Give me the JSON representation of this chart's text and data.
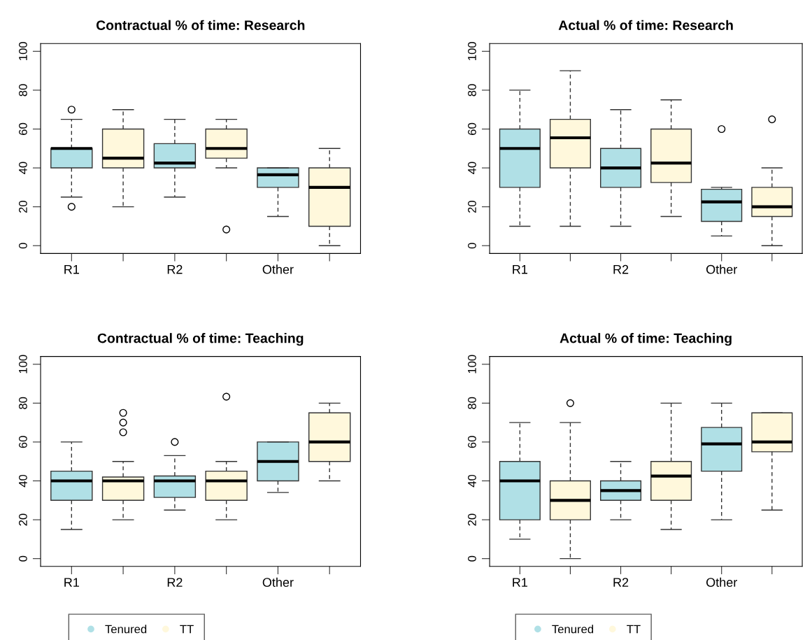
{
  "chart_data": [
    {
      "type": "box",
      "title": "Contractual % of time: Research",
      "categories": [
        "R1",
        null,
        "R2",
        null,
        "Other",
        null
      ],
      "ylim": [
        -4,
        104
      ],
      "yticks": [
        0,
        20,
        40,
        60,
        80,
        100
      ],
      "grid": false,
      "series": [
        {
          "color": "#b0e0e6",
          "boxes": [
            {
              "low": 25,
              "q1": 40,
              "median": 50,
              "q3": 50,
              "high": 65,
              "outliers": [
                70,
                20
              ]
            },
            null,
            {
              "low": 25,
              "q1": 40,
              "median": 42.5,
              "q3": 52.5,
              "high": 65
            },
            null,
            {
              "low": 15,
              "q1": 30,
              "median": 36.5,
              "q3": 40,
              "high": 40
            },
            null
          ]
        },
        {
          "color": "#fff8dc",
          "boxes": [
            null,
            {
              "low": 20,
              "q1": 40,
              "median": 45,
              "q3": 60,
              "high": 70
            },
            null,
            {
              "low": 40,
              "q1": 45,
              "median": 50,
              "q3": 60,
              "high": 65,
              "outliers": [
                8.3
              ]
            },
            null,
            {
              "low": 0,
              "q1": 10,
              "median": 30,
              "q3": 40,
              "high": 50
            }
          ]
        }
      ]
    },
    {
      "type": "box",
      "title": "Actual % of time: Research",
      "categories": [
        "R1",
        null,
        "R2",
        null,
        "Other",
        null
      ],
      "ylim": [
        -4,
        104
      ],
      "yticks": [
        0,
        20,
        40,
        60,
        80,
        100
      ],
      "grid": false,
      "series": [
        {
          "color": "#b0e0e6",
          "boxes": [
            {
              "low": 10,
              "q1": 30,
              "median": 50,
              "q3": 60,
              "high": 80
            },
            null,
            {
              "low": 10,
              "q1": 30,
              "median": 40,
              "q3": 50,
              "high": 70
            },
            null,
            {
              "low": 5,
              "q1": 12.5,
              "median": 22.5,
              "q3": 29,
              "high": 30,
              "outliers": [
                60
              ]
            },
            null
          ]
        },
        {
          "color": "#fff8dc",
          "boxes": [
            null,
            {
              "low": 10,
              "q1": 40,
              "median": 55.5,
              "q3": 65,
              "high": 90
            },
            null,
            {
              "low": 15,
              "q1": 32.5,
              "median": 42.5,
              "q3": 60,
              "high": 75
            },
            null,
            {
              "low": 0,
              "q1": 15,
              "median": 20,
              "q3": 30,
              "high": 40,
              "outliers": [
                65
              ]
            }
          ]
        }
      ]
    },
    {
      "type": "box",
      "title": "Contractual % of time: Teaching",
      "categories": [
        "R1",
        null,
        "R2",
        null,
        "Other",
        null
      ],
      "ylim": [
        -4,
        104
      ],
      "yticks": [
        0,
        20,
        40,
        60,
        80,
        100
      ],
      "grid": false,
      "legend": "bottom",
      "series": [
        {
          "name": "Tenured",
          "color": "#b0e0e6",
          "boxes": [
            {
              "low": 15,
              "q1": 30,
              "median": 40,
              "q3": 45,
              "high": 60
            },
            null,
            {
              "low": 25,
              "q1": 31.5,
              "median": 40,
              "q3": 42.5,
              "high": 53,
              "outliers": [
                60
              ]
            },
            null,
            {
              "low": 34,
              "q1": 40,
              "median": 50,
              "q3": 60,
              "high": 60
            },
            null
          ]
        },
        {
          "name": "TT",
          "color": "#fff8dc",
          "boxes": [
            null,
            {
              "low": 20,
              "q1": 30,
              "median": 40,
              "q3": 42,
              "high": 50,
              "outliers": [
                65,
                70,
                75
              ]
            },
            null,
            {
              "low": 20,
              "q1": 30,
              "median": 40,
              "q3": 45,
              "high": 50,
              "outliers": [
                83.3
              ]
            },
            null,
            {
              "low": 40,
              "q1": 50,
              "median": 60,
              "q3": 75,
              "high": 80
            }
          ]
        }
      ]
    },
    {
      "type": "box",
      "title": "Actual % of time: Teaching",
      "categories": [
        "R1",
        null,
        "R2",
        null,
        "Other",
        null
      ],
      "ylim": [
        -4,
        104
      ],
      "yticks": [
        0,
        20,
        40,
        60,
        80,
        100
      ],
      "grid": false,
      "legend": "bottom",
      "series": [
        {
          "name": "Tenured",
          "color": "#b0e0e6",
          "boxes": [
            {
              "low": 10,
              "q1": 20,
              "median": 40,
              "q3": 50,
              "high": 70
            },
            null,
            {
              "low": 20,
              "q1": 30,
              "median": 35,
              "q3": 40,
              "high": 50
            },
            null,
            {
              "low": 20,
              "q1": 45,
              "median": 59,
              "q3": 67.5,
              "high": 80
            },
            null
          ]
        },
        {
          "name": "TT",
          "color": "#fff8dc",
          "boxes": [
            null,
            {
              "low": 0,
              "q1": 20,
              "median": 30,
              "q3": 40,
              "high": 70,
              "outliers": [
                80
              ]
            },
            null,
            {
              "low": 15,
              "q1": 30,
              "median": 42.5,
              "q3": 50,
              "high": 80
            },
            null,
            {
              "low": 25,
              "q1": 55,
              "median": 60,
              "q3": 75,
              "high": 75
            }
          ]
        }
      ]
    }
  ]
}
